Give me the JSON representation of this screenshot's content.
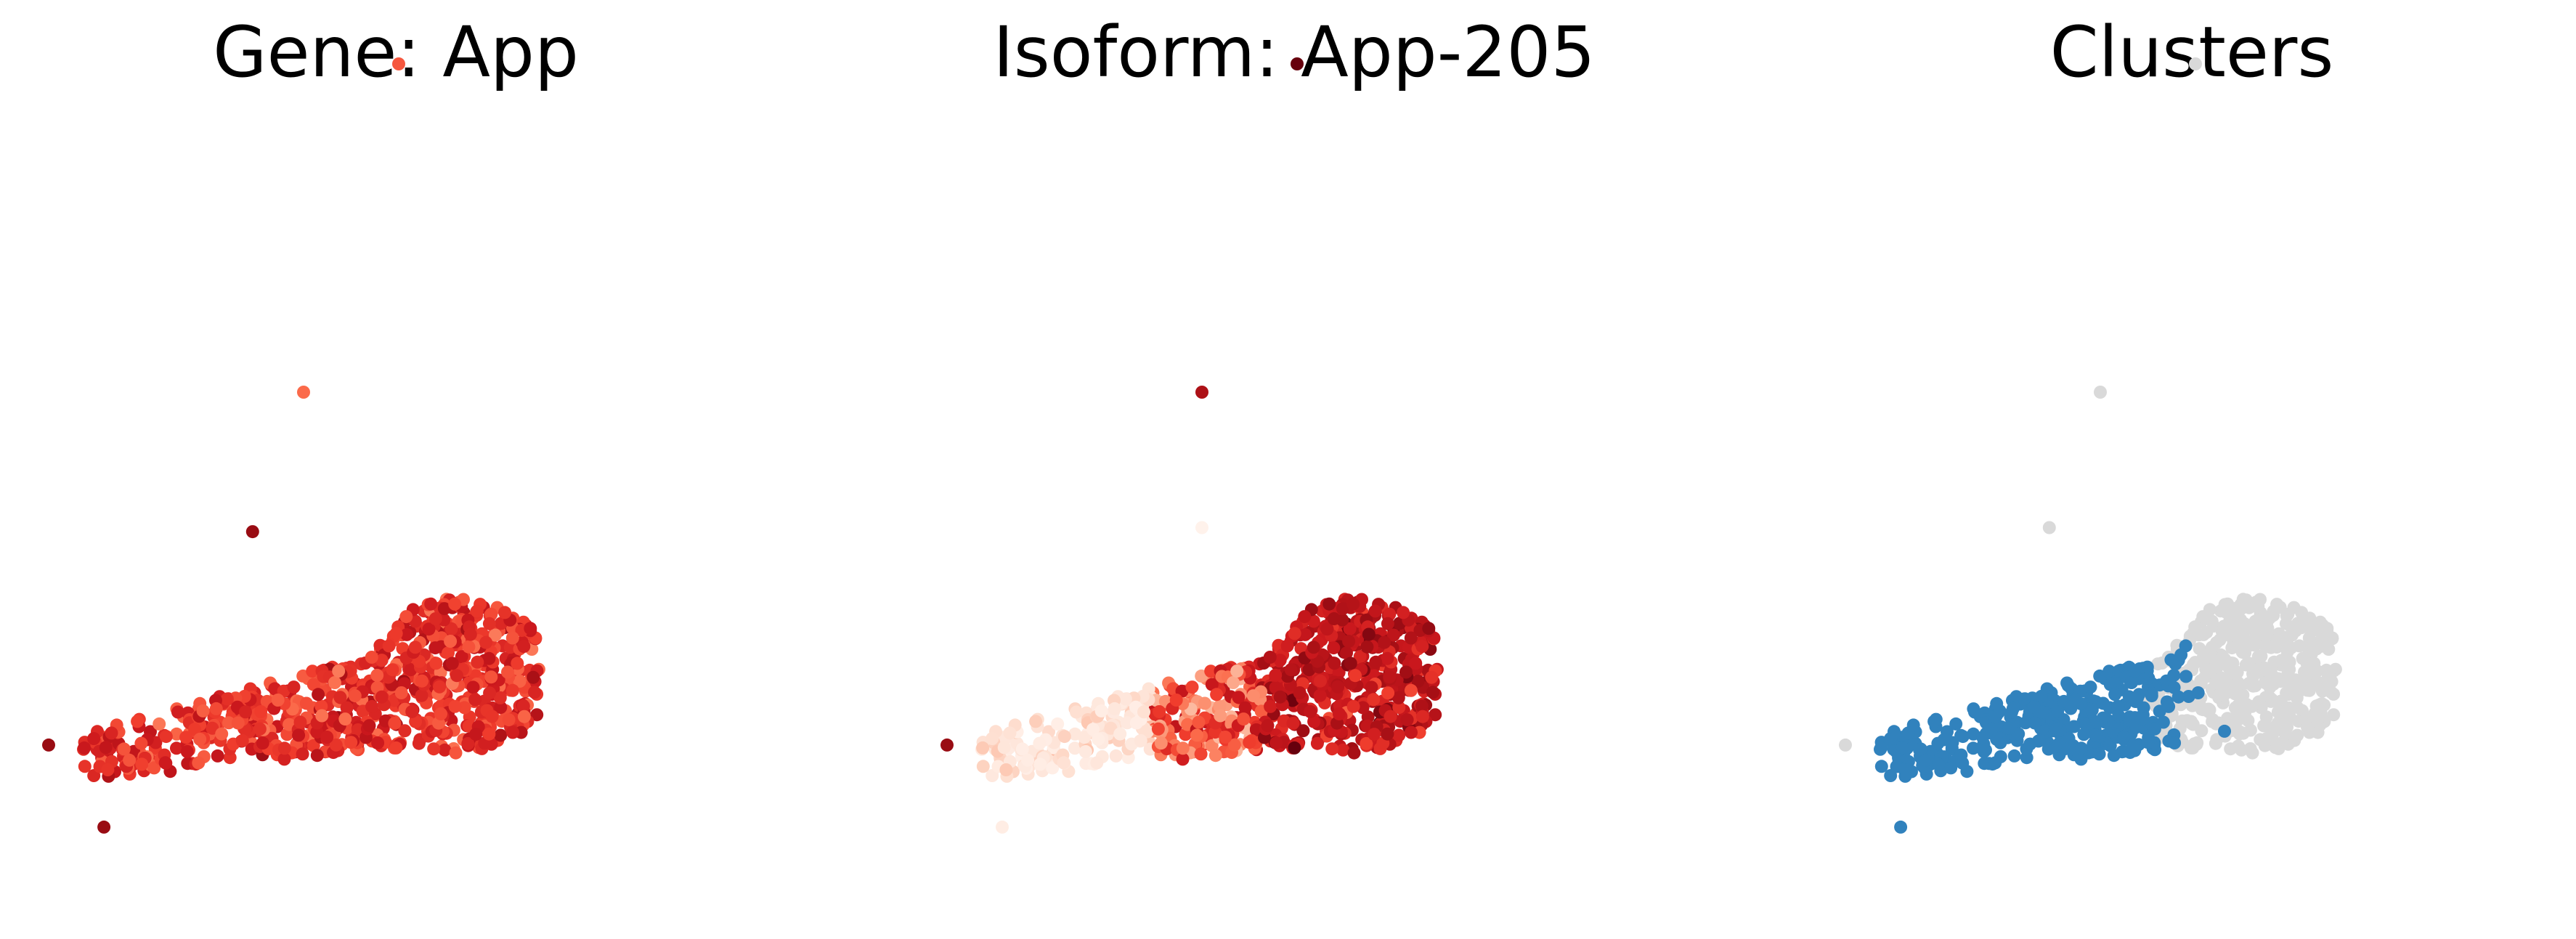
{
  "chart_data": [
    {
      "type": "scatter",
      "title": "Gene: App",
      "color_scale": "Reds",
      "outliers": [
        {
          "x": 0.12,
          "y": 10.0,
          "level": 0.55
        },
        {
          "x": -1.0,
          "y": 6.0,
          "level": 0.5
        },
        {
          "x": -1.6,
          "y": 4.3,
          "level": 0.9
        },
        {
          "x": -4.0,
          "y": 1.7,
          "level": 0.9
        },
        {
          "x": -3.35,
          "y": 0.7,
          "level": 0.9
        }
      ]
    },
    {
      "type": "scatter",
      "title": "Isoform: App-205",
      "color_scale": "Reds",
      "outliers": [
        {
          "x": 0.12,
          "y": 10.0,
          "level": 1.0
        },
        {
          "x": -1.0,
          "y": 6.0,
          "level": 0.85
        },
        {
          "x": -1.0,
          "y": 4.35,
          "level": 0.02
        },
        {
          "x": -4.0,
          "y": 1.7,
          "level": 0.9
        },
        {
          "x": -3.35,
          "y": 0.7,
          "level": 0.05
        }
      ]
    },
    {
      "type": "scatter",
      "title": "Clusters",
      "colors": {
        "highlighted": "#3182bd",
        "other": "#d9d9d9"
      },
      "outliers": [
        {
          "x": 0.12,
          "y": 10.0,
          "group": "other"
        },
        {
          "x": -1.0,
          "y": 6.0,
          "group": "other"
        },
        {
          "x": -1.6,
          "y": 4.35,
          "group": "other"
        },
        {
          "x": -4.0,
          "y": 1.7,
          "group": "other"
        },
        {
          "x": -3.35,
          "y": 0.7,
          "group": "highlighted"
        }
      ]
    }
  ]
}
